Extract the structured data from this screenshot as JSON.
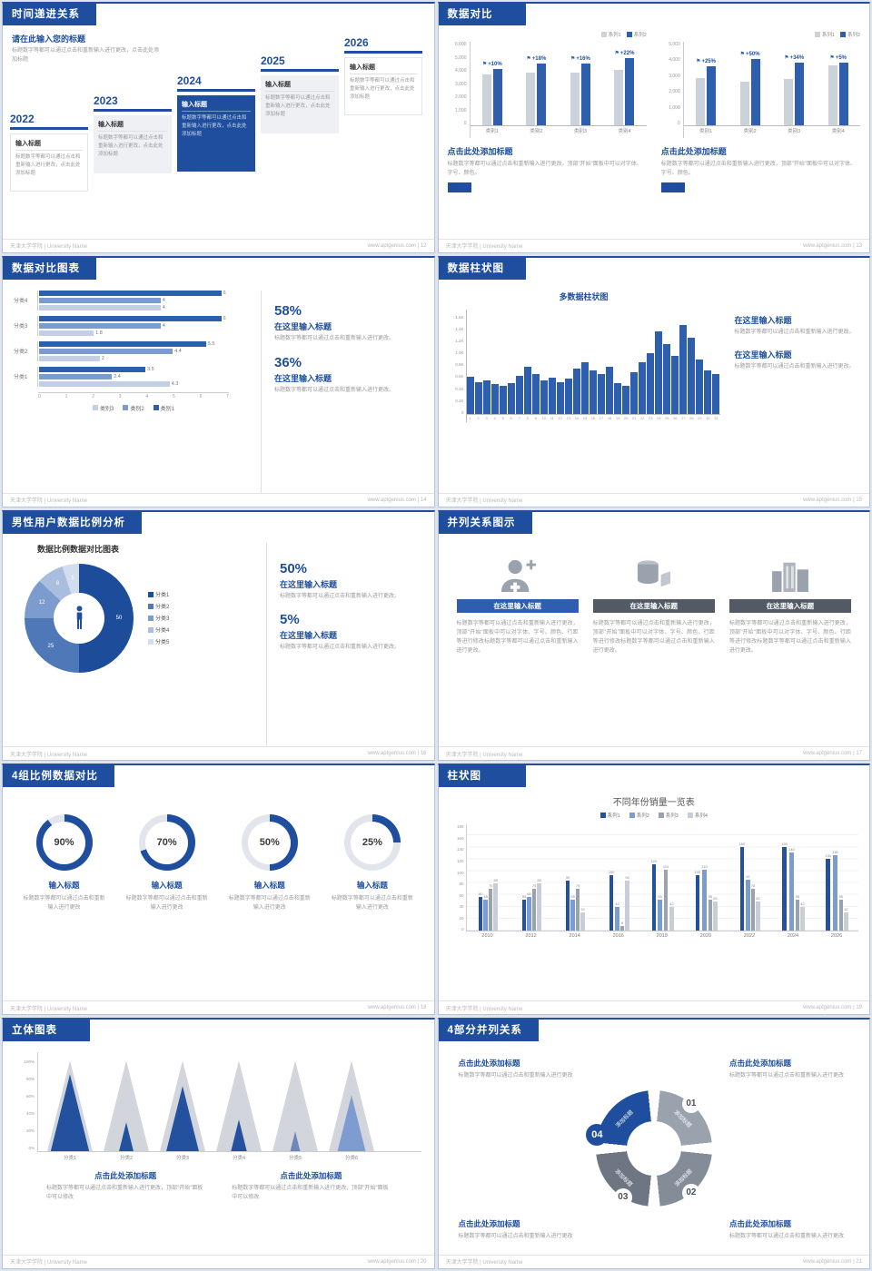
{
  "shared": {
    "footer_left": "天津大学学院 | University Name"
  },
  "slide12": {
    "header": "时间递进关系",
    "footer_right": "www.aptgenius.com | 12",
    "intro_title": "请在此输入您的标题",
    "intro_desc": "标题数字等都可以通过点击和重新输入进行更改，点击此处添加标题",
    "items": [
      {
        "year": "2022",
        "title": "输入标题",
        "desc": "标题数字等都可以通过点击和重新输入进行更改，点击此处添加标题",
        "style": "plain"
      },
      {
        "year": "2023",
        "title": "输入标题",
        "desc": "标题数字等都可以通过点击和重新输入进行更改，点击此处添加标题",
        "style": "gray"
      },
      {
        "year": "2024",
        "title": "输入标题",
        "desc": "标题数字等都可以通过点击和重新输入进行更改，点击此处添加标题",
        "style": "navy"
      },
      {
        "year": "2025",
        "title": "输入标题",
        "desc": "标题数字等都可以通过点击和重新输入进行更改，点击此处添加标题",
        "style": "gray"
      },
      {
        "year": "2026",
        "title": "输入标题",
        "desc": "标题数字等都可以通过点击和重新输入进行更改，点击此处添加标题",
        "style": "plain"
      }
    ]
  },
  "slide13": {
    "header": "数据对比",
    "footer_right": "www.aptgenius.com | 13",
    "charts": [
      {
        "type": "bar",
        "legend": [
          "系列1",
          "系列2"
        ],
        "seriesColors": [
          "#ccd2da",
          "#2e5fae"
        ],
        "categories": [
          "类别1",
          "类别2",
          "类别3",
          "类别4"
        ],
        "series": [
          {
            "name": "系列1",
            "values": [
              3900,
              4000,
              4050,
              4200
            ]
          },
          {
            "name": "系列2",
            "values": [
              4290,
              4720,
              4700,
              5120
            ]
          }
        ],
        "labels": [
          "+10%",
          "+18%",
          "+16%",
          "+22%"
        ],
        "ymax": 6000,
        "yticks": [
          "6,000",
          "5,000",
          "4,000",
          "3,000",
          "2,000",
          "1,000",
          "0"
        ],
        "title": "点击此处添加标题",
        "desc": "标题数字等都可以通过点击和重新输入进行更改，顶部\"开始\"面板中可以对字体、字号、颜色。"
      },
      {
        "type": "bar",
        "legend": [
          "系列1",
          "系列2"
        ],
        "seriesColors": [
          "#ccd2da",
          "#2e5fae"
        ],
        "categories": [
          "类别1",
          "类别2",
          "类别3",
          "类别4"
        ],
        "series": [
          {
            "name": "系列1",
            "values": [
              3000,
              2800,
              2950,
              3800
            ]
          },
          {
            "name": "系列2",
            "values": [
              3750,
              4200,
              3950,
              3990
            ]
          }
        ],
        "labels": [
          "+25%",
          "+50%",
          "+34%",
          "+5%"
        ],
        "ymax": 5000,
        "yticks": [
          "5,000",
          "4,000",
          "3,000",
          "2,000",
          "1,000",
          "0"
        ],
        "title": "点击此处添加标题",
        "desc": "标题数字等都可以通过点击和重新输入进行更改，顶部\"开始\"面板中可以对字体、字号、颜色。"
      }
    ]
  },
  "slide14": {
    "header": "数据对比图表",
    "footer_right": "www.aptgenius.com | 14",
    "chart": {
      "type": "bar",
      "categories": [
        "分类4",
        "分类3",
        "分类2",
        "分类1"
      ],
      "series": [
        {
          "name": "类别1",
          "values": [
            6,
            6,
            5.5,
            3.5
          ]
        },
        {
          "name": "类别2",
          "values": [
            4,
            4,
            4.4,
            2.4
          ]
        },
        {
          "name": "类别3",
          "values": [
            4,
            1.8,
            2,
            4.3
          ]
        }
      ],
      "colors": [
        "#2e5fae",
        "#7d9cce",
        "#c3cfe3"
      ],
      "xmax": 7,
      "xticks": [
        "0",
        "1",
        "2",
        "3",
        "4",
        "5",
        "6",
        "7"
      ],
      "legend": [
        "类别3",
        "类别2",
        "类别1"
      ],
      "legendColors": [
        "#c3cfe3",
        "#7d9cce",
        "#2e5fae"
      ]
    },
    "blocks": [
      {
        "pct": "58%",
        "title": "在这里输入标题",
        "desc": "标题数字等都可以通过点击和重新输入进行更改。"
      },
      {
        "pct": "36%",
        "title": "在这里输入标题",
        "desc": "标题数字等都可以通过点击和重新输入进行更改。"
      }
    ]
  },
  "slide15": {
    "header": "数据柱状图",
    "footer_right": "www.aptgenius.com | 15",
    "chart": {
      "type": "bar",
      "title": "多数据柱状图",
      "ymax": 1600,
      "yticks": [
        "1.6K",
        "1.4K",
        "1.2K",
        "1.0K",
        "0.8K",
        "0.6K",
        "0.4K",
        "0.2K",
        "0"
      ],
      "xlabels": [
        "1",
        "2",
        "3",
        "4",
        "5",
        "6",
        "7",
        "8",
        "9",
        "10",
        "11",
        "12",
        "13",
        "14",
        "15",
        "16",
        "17",
        "18",
        "19",
        "20",
        "21",
        "22",
        "23",
        "24",
        "25",
        "26",
        "27",
        "28",
        "29",
        "30",
        "31"
      ],
      "values": [
        620,
        540,
        560,
        500,
        470,
        520,
        640,
        780,
        660,
        560,
        610,
        530,
        590,
        760,
        860,
        730,
        670,
        790,
        520,
        470,
        690,
        860,
        1010,
        1360,
        1160,
        960,
        1460,
        1260,
        910,
        720,
        660
      ]
    },
    "blocks": [
      {
        "title": "在这里输入标题",
        "desc": "标题数字等都可以通过点击和重新输入进行更改。"
      },
      {
        "title": "在这里输入标题",
        "desc": "标题数字等都可以通过点击和重新输入进行更改。"
      }
    ]
  },
  "slide16": {
    "header": "男性用户数据比例分析",
    "footer_right": "www.aptgenius.com | 16",
    "chart_title": "数据比例数据对比图表",
    "donut": {
      "type": "pie",
      "slices": [
        {
          "label": "50",
          "pct": 50
        },
        {
          "label": "25",
          "pct": 25
        },
        {
          "label": "12",
          "pct": 12
        },
        {
          "label": "8",
          "pct": 8
        },
        {
          "label": "5",
          "pct": 5
        }
      ],
      "colors": [
        "#1d4d9a",
        "#4f78b8",
        "#7d9cce",
        "#a9bede",
        "#d2deee"
      ],
      "legend": [
        "分类1",
        "分类2",
        "分类3",
        "分类4",
        "分类5"
      ]
    },
    "blocks": [
      {
        "pct": "50%",
        "title": "在这里输入标题",
        "desc": "标题数字等都可以通过点击和重新输入进行更改。"
      },
      {
        "pct": "5%",
        "title": "在这里输入标题",
        "desc": "标题数字等都可以通过点击和重新输入进行更改。"
      }
    ]
  },
  "slide17": {
    "header": "并列关系图示",
    "footer_right": "www.aptgenius.com | 17",
    "cols": [
      {
        "icon": "nurse-icon",
        "title": "在这里输入标题",
        "style": "blue",
        "desc": "标题数字等都可以通过点击和重新输入进行更改，顶部\"开始\"面板中可以对字体、字号、颜色、行距等进行修改标题数字等都可以通过点击和重新输入进行更改。"
      },
      {
        "icon": "cylinder-icon",
        "title": "在这里输入标题",
        "style": "dark",
        "desc": "标题数字等都可以通过点击和重新输入进行更改，顶部\"开始\"面板中可以对字体、字号、颜色、行距等进行修改标题数字等都可以通过点击和重新输入进行更改。"
      },
      {
        "icon": "building-icon",
        "title": "在这里输入标题",
        "style": "dark",
        "desc": "标题数字等都可以通过点击和重新输入进行更改，顶部\"开始\"面板中可以对字体、字号、颜色、行距等进行修改标题数字等都可以通过点击和重新输入进行更改。"
      }
    ]
  },
  "slide18": {
    "header": "4组比例数据对比",
    "footer_right": "www.aptgenius.com | 18",
    "items": [
      {
        "pct": 90,
        "pct_label": "90%",
        "title": "输入标题",
        "desc": "标题数字等都可以通过点击和重新输入进行更改"
      },
      {
        "pct": 70,
        "pct_label": "70%",
        "title": "输入标题",
        "desc": "标题数字等都可以通过点击和重新输入进行更改"
      },
      {
        "pct": 50,
        "pct_label": "50%",
        "title": "输入标题",
        "desc": "标题数字等都可以通过点击和重新输入进行更改"
      },
      {
        "pct": 25,
        "pct_label": "25%",
        "title": "输入标题",
        "desc": "标题数字等都可以通过点击和重新输入进行更改"
      }
    ]
  },
  "slide19": {
    "header": "柱状图",
    "footer_right": "www.aptgenius.com | 19",
    "chart": {
      "type": "bar",
      "title": "不同年份销量一览表",
      "categories": [
        "2010",
        "2012",
        "2014",
        "2016",
        "2018",
        "2020",
        "2022",
        "2024",
        "2026"
      ],
      "series": [
        {
          "name": "系列1",
          "values": [
            60,
            55,
            90,
            100,
            120,
            100,
            150,
            150,
            130
          ]
        },
        {
          "name": "系列2",
          "values": [
            55,
            60,
            55,
            42,
            55,
            110,
            92,
            140,
            135
          ]
        },
        {
          "name": "系列3",
          "values": [
            75,
            75,
            75,
            8,
            110,
            55,
            75,
            55,
            55
          ]
        },
        {
          "name": "系列4",
          "values": [
            85,
            85,
            32,
            90,
            42,
            53,
            52,
            42,
            32
          ]
        }
      ],
      "colors": [
        "#24519e",
        "#7d9cce",
        "#9aa3ad",
        "#c9ced6"
      ],
      "ymax": 180,
      "yticks": [
        "180",
        "160",
        "140",
        "120",
        "100",
        "80",
        "60",
        "40",
        "20",
        "0"
      ]
    }
  },
  "slide20": {
    "header": "立体图表",
    "footer_right": "www.aptgenius.com | 20",
    "yticks": [
      "100%",
      "80%",
      "60%",
      "40%",
      "20%",
      "0%"
    ],
    "cones": [
      {
        "label": "分类1",
        "fill": 85,
        "color": "#24519e",
        "body": "#d2d6dc"
      },
      {
        "label": "分类2",
        "fill": 32,
        "color": "#24519e",
        "body": "#d2d6dc"
      },
      {
        "label": "分类3",
        "fill": 72,
        "color": "#24519e",
        "body": "#d2d6dc"
      },
      {
        "label": "分类4",
        "fill": 35,
        "color": "#24519e",
        "body": "#d2d6dc"
      },
      {
        "label": "分类5",
        "fill": 22,
        "color": "#6e87b8",
        "body": "#d2d6dc"
      },
      {
        "label": "分类6",
        "fill": 62,
        "color": "#7f9cd0",
        "body": "#d2d6dc"
      }
    ],
    "blocks": [
      {
        "title": "点击此处添加标题",
        "desc": "标题数字等都可以通过点击和重新输入进行更改，顶部\"开始\"面板中可以修改"
      },
      {
        "title": "点击此处添加标题",
        "desc": "标题数字等都可以通过点击和重新输入进行更改，顶部\"开始\"面板中可以修改"
      }
    ]
  },
  "slide21": {
    "header": "4部分并列关系",
    "footer_right": "www.aptgenius.com | 21",
    "segments": [
      {
        "label": "添加标题",
        "color": "#9aa2ad"
      },
      {
        "label": "添加标题",
        "color": "#848c98"
      },
      {
        "label": "添加标题",
        "color": "#6e7683"
      },
      {
        "label": "添加标题",
        "color": "#1e4e9d"
      }
    ],
    "badges": [
      {
        "num": "01",
        "style": "plain"
      },
      {
        "num": "02",
        "style": "plain"
      },
      {
        "num": "03",
        "style": "plain"
      },
      {
        "num": "04",
        "style": "navy"
      }
    ],
    "blocks": [
      {
        "title": "点击此处添加标题",
        "desc": "标题数字等都可以通过点击和重新输入进行更改"
      },
      {
        "title": "点击此处添加标题",
        "desc": "标题数字等都可以通过点击和重新输入进行更改"
      },
      {
        "title": "点击此处添加标题",
        "desc": "标题数字等都可以通过点击和重新输入进行更改"
      },
      {
        "title": "点击此处添加标题",
        "desc": "标题数字等都可以通过点击和重新输入进行更改"
      }
    ]
  }
}
